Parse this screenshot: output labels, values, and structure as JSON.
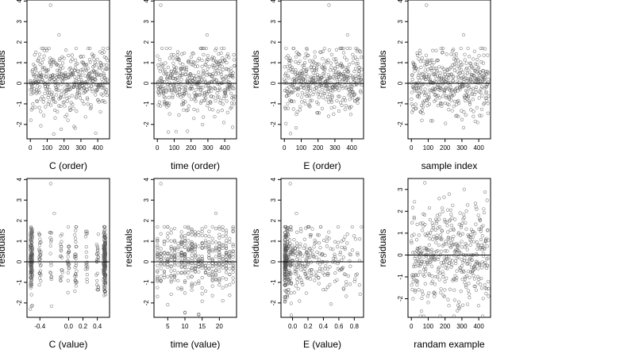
{
  "colors": {
    "axis": "#000000",
    "point_stroke": "#555555",
    "zero_line": "#000000",
    "background": "#ffffff"
  },
  "chart_data": [
    {
      "type": "scatter",
      "xlabel": "C (order)",
      "ylabel": "residuals",
      "xlim": [
        -20,
        470
      ],
      "ylim": [
        -2.7,
        4.05
      ],
      "xticks": [
        0,
        100,
        200,
        300,
        400
      ],
      "yticks": [
        -2,
        -1,
        0,
        1,
        2,
        3,
        4
      ],
      "xtick_labels": [
        "0",
        "100",
        "200",
        "300",
        "400"
      ],
      "hline": 0,
      "n_points": 450,
      "x_kind": "order",
      "outliers": [
        [
          120,
          3.8
        ],
        [
          170,
          2.35
        ]
      ]
    },
    {
      "type": "scatter",
      "xlabel": "time (order)",
      "ylabel": "residuals",
      "xlim": [
        -20,
        470
      ],
      "ylim": [
        -2.7,
        4.05
      ],
      "xticks": [
        0,
        100,
        200,
        300,
        400
      ],
      "yticks": [
        -2,
        -1,
        0,
        1,
        2,
        3,
        4
      ],
      "xtick_labels": [
        "0",
        "100",
        "200",
        "300",
        "400"
      ],
      "hline": 0,
      "n_points": 450,
      "x_kind": "order",
      "outliers": [
        [
          20,
          3.8
        ],
        [
          295,
          2.35
        ]
      ]
    },
    {
      "type": "scatter",
      "xlabel": "E (order)",
      "ylabel": "residuals",
      "xlim": [
        -20,
        470
      ],
      "ylim": [
        -2.7,
        4.05
      ],
      "xticks": [
        0,
        100,
        200,
        300,
        400
      ],
      "yticks": [
        -2,
        -1,
        0,
        1,
        2,
        3,
        4
      ],
      "xtick_labels": [
        "0",
        "100",
        "200",
        "300",
        "400"
      ],
      "hline": 0,
      "n_points": 450,
      "x_kind": "order",
      "outliers": [
        [
          265,
          3.8
        ],
        [
          375,
          2.35
        ]
      ]
    },
    {
      "type": "scatter",
      "xlabel": "sample index",
      "ylabel": "residuals",
      "xlim": [
        -20,
        470
      ],
      "ylim": [
        -2.7,
        4.05
      ],
      "xticks": [
        0,
        100,
        200,
        300,
        400
      ],
      "yticks": [
        -2,
        -1,
        0,
        1,
        2,
        3,
        4
      ],
      "xtick_labels": [
        "0",
        "100",
        "200",
        "300",
        "400"
      ],
      "hline": 0,
      "n_points": 450,
      "x_kind": "order",
      "outliers": [
        [
          90,
          3.8
        ],
        [
          310,
          2.35
        ]
      ]
    },
    {
      "type": "scatter",
      "xlabel": "C (value)",
      "ylabel": "residuals",
      "xlim": [
        -0.58,
        0.57
      ],
      "ylim": [
        -2.7,
        4.05
      ],
      "xticks": [
        -0.4,
        0.0,
        0.2,
        0.4
      ],
      "yticks": [
        -2,
        -1,
        0,
        1,
        2,
        3,
        4
      ],
      "xtick_labels": [
        "-0.4",
        "0.0",
        "0.2",
        "0.4"
      ],
      "hline": 0,
      "n_points": 450,
      "x_kind": "discrete_c",
      "x_levels": [
        -0.52,
        -0.4,
        -0.25,
        -0.1,
        0.0,
        0.1,
        0.25,
        0.4,
        0.5
      ],
      "outliers": [
        [
          -0.25,
          3.8
        ],
        [
          -0.2,
          2.35
        ]
      ]
    },
    {
      "type": "scatter",
      "xlabel": "time (value)",
      "ylabel": "residuals",
      "xlim": [
        1,
        25
      ],
      "ylim": [
        -2.7,
        4.05
      ],
      "xticks": [
        5,
        10,
        15,
        20
      ],
      "yticks": [
        -2,
        -1,
        0,
        1,
        2,
        3,
        4
      ],
      "xtick_labels": [
        "5",
        "10",
        "15",
        "20"
      ],
      "hline": 0,
      "n_points": 450,
      "x_kind": "discrete_time",
      "x_levels": [
        2,
        3,
        4,
        5,
        6,
        7,
        8,
        9,
        10,
        11,
        12,
        13,
        14,
        15,
        16,
        17,
        18,
        19,
        20,
        21,
        22,
        23,
        24
      ],
      "outliers": [
        [
          3,
          3.8
        ],
        [
          19,
          2.35
        ]
      ]
    },
    {
      "type": "scatter",
      "xlabel": "E (value)",
      "ylabel": "residuals",
      "xlim": [
        -0.15,
        0.92
      ],
      "ylim": [
        -2.7,
        4.05
      ],
      "xticks": [
        0.0,
        0.2,
        0.4,
        0.6,
        0.8
      ],
      "yticks": [
        -2,
        -1,
        0,
        1,
        2,
        3,
        4
      ],
      "xtick_labels": [
        "0.0",
        "0.2",
        "0.4",
        "0.6",
        "0.8"
      ],
      "hline": 0,
      "n_points": 450,
      "x_kind": "skewed",
      "outliers": [
        [
          -0.03,
          3.8
        ],
        [
          0.05,
          2.35
        ]
      ]
    },
    {
      "type": "scatter",
      "xlabel": "randam example",
      "ylabel": "residuals",
      "xlim": [
        -20,
        470
      ],
      "ylim": [
        -2.85,
        3.5
      ],
      "xticks": [
        0,
        100,
        200,
        300,
        400
      ],
      "yticks": [
        -2,
        -1,
        0,
        1,
        2,
        3
      ],
      "xtick_labels": [
        "0",
        "100",
        "200",
        "300",
        "400"
      ],
      "hline": 0,
      "n_points": 450,
      "x_kind": "order_wide",
      "outliers": [
        [
          80,
          3.3
        ]
      ]
    }
  ]
}
